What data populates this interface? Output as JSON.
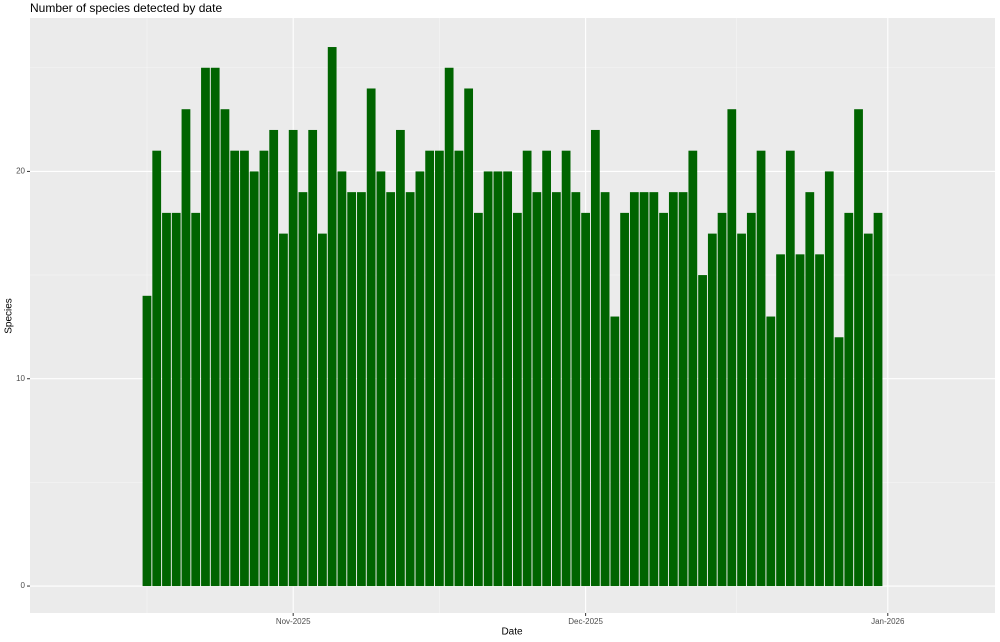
{
  "chart_data": {
    "type": "bar",
    "title": "Number of species detected by date",
    "x_label": "Date",
    "y_label": "Species",
    "x": [
      "2025-10-17",
      "2025-10-18",
      "2025-10-19",
      "2025-10-20",
      "2025-10-21",
      "2025-10-22",
      "2025-10-23",
      "2025-10-24",
      "2025-10-25",
      "2025-10-26",
      "2025-10-27",
      "2025-10-28",
      "2025-10-29",
      "2025-10-30",
      "2025-10-31",
      "2025-11-01",
      "2025-11-02",
      "2025-11-03",
      "2025-11-04",
      "2025-11-05",
      "2025-11-06",
      "2025-11-07",
      "2025-11-08",
      "2025-11-09",
      "2025-11-10",
      "2025-11-11",
      "2025-11-12",
      "2025-11-13",
      "2025-11-14",
      "2025-11-15",
      "2025-11-16",
      "2025-11-17",
      "2025-11-18",
      "2025-11-19",
      "2025-11-20",
      "2025-11-21",
      "2025-11-22",
      "2025-11-23",
      "2025-11-24",
      "2025-11-25",
      "2025-11-26",
      "2025-11-27",
      "2025-11-28",
      "2025-11-29",
      "2025-11-30",
      "2025-12-01",
      "2025-12-02",
      "2025-12-03",
      "2025-12-04",
      "2025-12-05",
      "2025-12-06",
      "2025-12-07",
      "2025-12-08",
      "2025-12-09",
      "2025-12-10",
      "2025-12-11",
      "2025-12-12",
      "2025-12-13",
      "2025-12-14",
      "2025-12-15",
      "2025-12-16",
      "2025-12-17",
      "2025-12-18",
      "2025-12-19",
      "2025-12-20",
      "2025-12-21",
      "2025-12-22",
      "2025-12-23",
      "2025-12-24",
      "2025-12-25",
      "2025-12-26",
      "2025-12-27",
      "2025-12-28",
      "2025-12-29",
      "2025-12-30",
      "2025-12-31"
    ],
    "values": [
      14,
      21,
      18,
      18,
      23,
      18,
      25,
      25,
      23,
      21,
      21,
      20,
      21,
      22,
      17,
      22,
      19,
      22,
      17,
      26,
      20,
      19,
      19,
      24,
      20,
      19,
      22,
      19,
      20,
      21,
      21,
      25,
      21,
      24,
      18,
      20,
      20,
      20,
      18,
      21,
      19,
      21,
      19,
      21,
      19,
      18,
      22,
      19,
      13,
      18,
      19,
      19,
      19,
      18,
      19,
      19,
      21,
      15,
      17,
      18,
      23,
      17,
      18,
      21,
      13,
      16,
      21,
      16,
      19,
      16,
      20,
      12,
      18,
      23,
      17,
      18
    ],
    "color": "#006400",
    "xlim": [
      "2025-10-05",
      "2026-01-12"
    ],
    "xticks": [
      {
        "value": "2025-11-01",
        "label": "Nov-2025"
      },
      {
        "value": "2025-12-01",
        "label": "Dec-2025"
      },
      {
        "value": "2026-01-01",
        "label": "Jan-2026"
      }
    ],
    "ylim": [
      -1.3,
      27.4
    ],
    "yticks": [
      0,
      10,
      20
    ],
    "grid": true
  }
}
